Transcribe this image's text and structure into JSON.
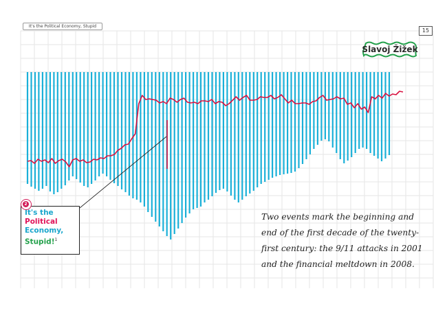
{
  "header": {
    "running_title": "It's the Political Economy, Stupid",
    "page_number": "15"
  },
  "author": {
    "name": "Slavoj Žižek"
  },
  "callout": {
    "number": "2",
    "title_part1": "It's the",
    "title_part2": "Political",
    "title_part3": "Economy,",
    "title_part4": "Stupid!",
    "footnote_mark": "1"
  },
  "body_text": {
    "lines": [
      "Two events mark the beginning and",
      "end of the first decade of the twenty-",
      "first century: the 9/11 attacks in 2001",
      "and the financial meltdown in 2008."
    ]
  },
  "colors": {
    "bars": "#1ab0d8",
    "line": "#d8103f",
    "grid": "#e6e6e6",
    "accent_pink": "#e0145a",
    "accent_green": "#22a04a"
  },
  "chart_data": {
    "type": "bar",
    "series": [
      {
        "values": [
          163,
          167,
          170,
          173,
          170,
          166,
          174,
          178,
          175,
          170,
          165,
          158,
          152,
          156,
          161,
          166,
          168,
          163,
          158,
          152,
          148,
          152,
          157,
          162,
          166,
          171,
          175,
          180,
          184,
          186,
          190,
          196,
          204,
          211,
          218,
          225,
          232,
          239,
          244,
          236,
          228,
          220,
          212,
          206,
          200,
          198,
          196,
          190,
          186,
          181,
          176,
          172,
          170,
          174,
          180,
          186,
          190,
          186,
          181,
          177,
          173,
          168,
          163,
          160,
          157,
          154,
          152,
          150,
          149,
          148,
          147,
          145,
          140,
          134,
          127,
          120,
          112,
          106,
          100,
          98,
          101,
          110,
          118,
          127,
          133,
          129,
          124,
          118,
          112,
          110,
          112,
          118,
          122,
          126,
          130,
          126,
          121
        ]
      },
      {
        "values": [
          55,
          56,
          52,
          58,
          55,
          57,
          53,
          59,
          52,
          56,
          58,
          54,
          47,
          57,
          59,
          55,
          57,
          53,
          54,
          58,
          57,
          60,
          59,
          63,
          63,
          65,
          71,
          74,
          79,
          80,
          88,
          95,
          139,
          151,
          145,
          146,
          145,
          144,
          140,
          142,
          139,
          147,
          145,
          141,
          145,
          147,
          141,
          140,
          141,
          139,
          143,
          143,
          142,
          145,
          139,
          142,
          141,
          136,
          139,
          144,
          149,
          144,
          148,
          151,
          144,
          144,
          145,
          149,
          148,
          148,
          151,
          146,
          148,
          152,
          146,
          140,
          144,
          139,
          139,
          140,
          140,
          138,
          142,
          143,
          148,
          151,
          144,
          145,
          146,
          149,
          146,
          147,
          138,
          140,
          133,
          139,
          131,
          134,
          126,
          149,
          146,
          151,
          147,
          154,
          150,
          153,
          152,
          157,
          156
        ]
      }
    ]
  }
}
